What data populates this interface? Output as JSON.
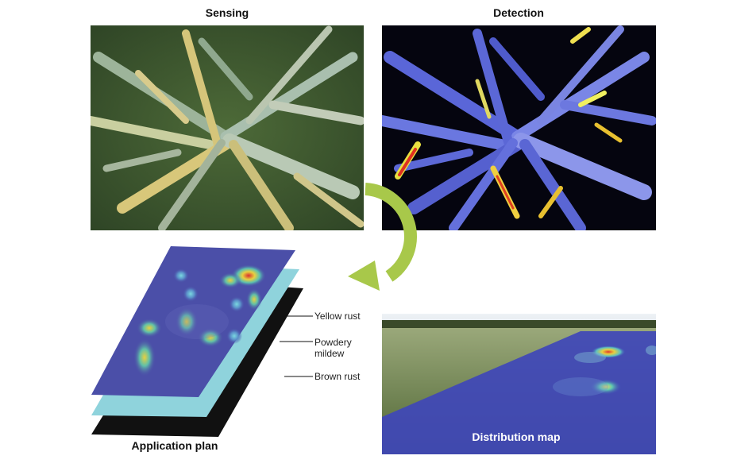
{
  "titles": {
    "sensing": "Sensing",
    "detection": "Detection",
    "application_plan": "Application plan",
    "distribution_map": "Distribution map"
  },
  "layers": {
    "yellow_rust": "Yellow rust",
    "powdery_mildew_line1": "Powdery",
    "powdery_mildew_line2": "mildew",
    "brown_rust": "Brown rust"
  },
  "colors": {
    "arrow": "#a8c84a",
    "layer_top": "#4b4fa8",
    "layer_mid": "#8fd3dc",
    "layer_bottom": "#111111",
    "map_overlay": "#3f47b8"
  }
}
